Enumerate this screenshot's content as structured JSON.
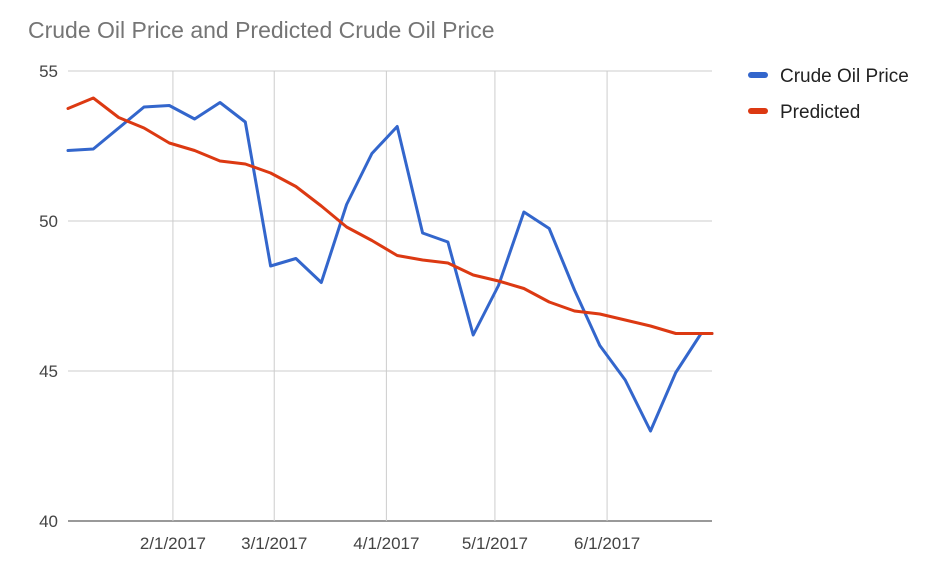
{
  "chart_data": {
    "type": "line",
    "title": "Crude Oil Price and Predicted Crude Oil Price",
    "xlabel": "",
    "ylabel": "",
    "ylim": [
      40,
      55
    ],
    "yticks": [
      40,
      45,
      50,
      55
    ],
    "xticks": [
      "2/1/2017",
      "3/1/2017",
      "4/1/2017",
      "5/1/2017",
      "6/1/2017"
    ],
    "x_range": [
      "2017-01-03",
      "2017-06-30"
    ],
    "grid": true,
    "legend_position": "right",
    "x": [
      "2017-01-03",
      "2017-01-10",
      "2017-01-17",
      "2017-01-24",
      "2017-01-31",
      "2017-02-07",
      "2017-02-14",
      "2017-02-21",
      "2017-02-28",
      "2017-03-07",
      "2017-03-14",
      "2017-03-21",
      "2017-03-28",
      "2017-04-04",
      "2017-04-11",
      "2017-04-18",
      "2017-04-25",
      "2017-05-02",
      "2017-05-09",
      "2017-05-16",
      "2017-05-23",
      "2017-05-30",
      "2017-06-06",
      "2017-06-13",
      "2017-06-20",
      "2017-06-27",
      "2017-06-30"
    ],
    "series": [
      {
        "name": "Crude Oil Price",
        "color": "#3366CC",
        "values": [
          52.35,
          52.4,
          53.1,
          53.8,
          53.85,
          53.4,
          53.95,
          53.3,
          48.5,
          48.75,
          47.95,
          50.55,
          52.25,
          53.15,
          49.6,
          49.3,
          46.2,
          47.85,
          50.3,
          49.75,
          47.7,
          45.85,
          44.7,
          43.0,
          44.95,
          46.25,
          46.25
        ]
      },
      {
        "name": "Predicted",
        "color": "#DC3912",
        "values": [
          53.75,
          54.1,
          53.45,
          53.1,
          52.6,
          52.35,
          52.0,
          51.9,
          51.6,
          51.15,
          50.5,
          49.8,
          49.35,
          48.85,
          48.7,
          48.6,
          48.2,
          48.0,
          47.75,
          47.3,
          47.0,
          46.9,
          46.7,
          46.5,
          46.25,
          46.25,
          46.25
        ]
      }
    ]
  }
}
